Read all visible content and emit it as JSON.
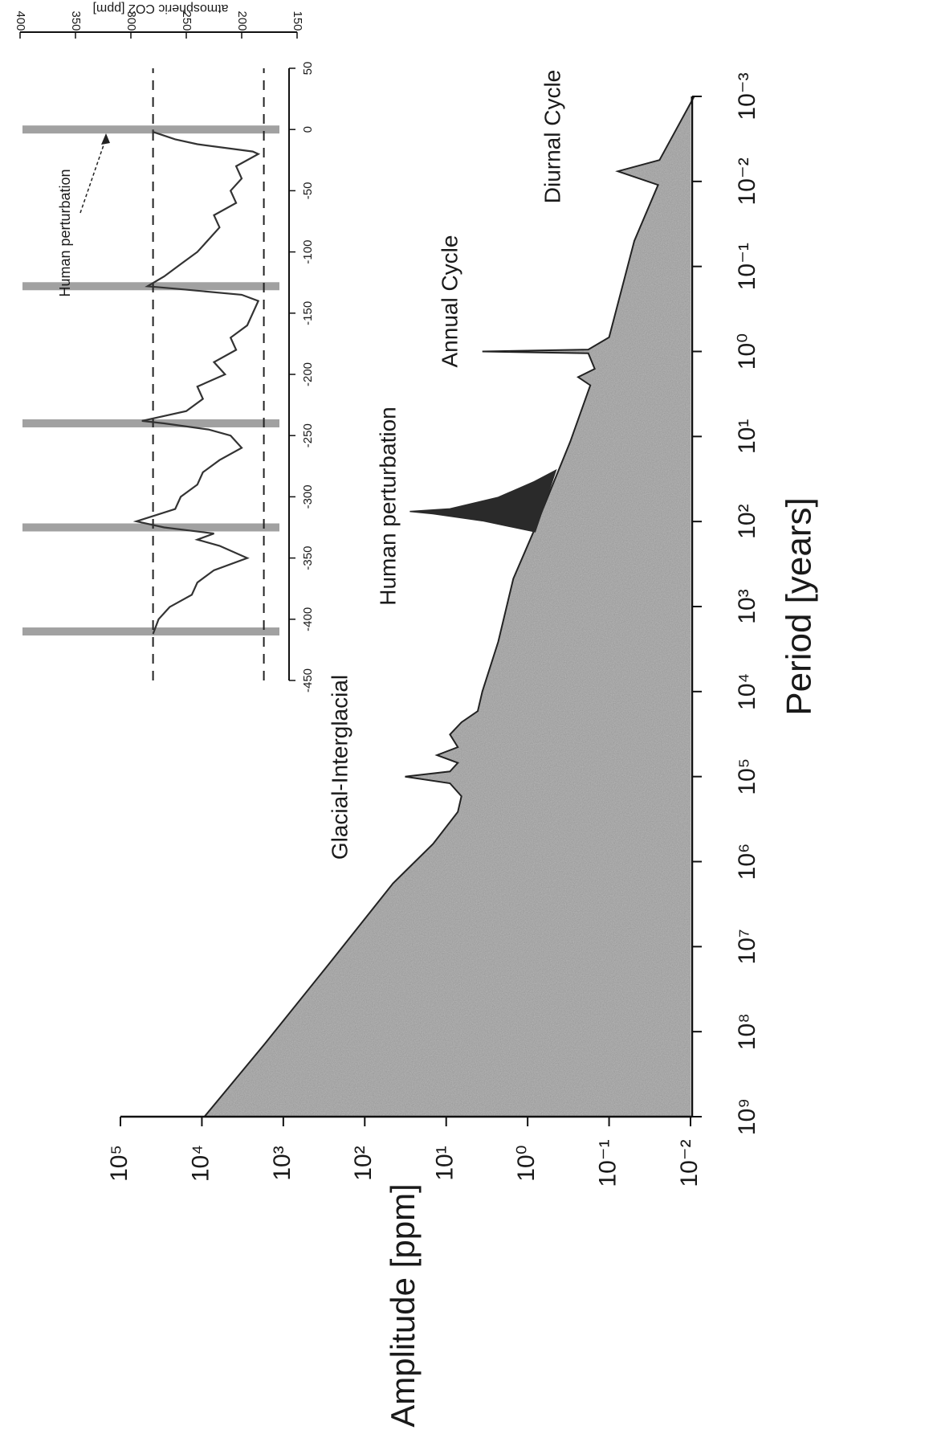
{
  "chart_data": [
    {
      "type": "area",
      "x_label": "Period [years]",
      "y_label": "Amplitude [ppm]",
      "xscale": "log",
      "yscale": "log",
      "xlim": [
        1000000000,
        0.001
      ],
      "ylim": [
        0.01,
        100000
      ],
      "xticks": [
        {
          "value": 1000000000,
          "label": "10⁹"
        },
        {
          "value": 100000000,
          "label": "10⁸"
        },
        {
          "value": 10000000,
          "label": "10⁷"
        },
        {
          "value": 1000000,
          "label": "10⁶"
        },
        {
          "value": 100000,
          "label": "10⁵"
        },
        {
          "value": 10000,
          "label": "10⁴"
        },
        {
          "value": 1000,
          "label": "10³"
        },
        {
          "value": 100,
          "label": "10²"
        },
        {
          "value": 10,
          "label": "10¹"
        },
        {
          "value": 1,
          "label": "10⁰"
        },
        {
          "value": 0.1,
          "label": "10⁻¹"
        },
        {
          "value": 0.01,
          "label": "10⁻²"
        },
        {
          "value": 0.001,
          "label": "10⁻³"
        }
      ],
      "yticks": [
        {
          "value": 100000,
          "label": "10⁵"
        },
        {
          "value": 10000,
          "label": "10⁴"
        },
        {
          "value": 1000,
          "label": "10³"
        },
        {
          "value": 100,
          "label": "10²"
        },
        {
          "value": 10,
          "label": "10¹"
        },
        {
          "value": 1,
          "label": "10⁰"
        },
        {
          "value": 0.1,
          "label": "10⁻¹"
        },
        {
          "value": 0.01,
          "label": "10⁻²"
        }
      ],
      "series": [
        {
          "color": "#b4b4b4",
          "x": [
            1000000000,
            140000000,
            16000000,
            1800000,
            620000,
            260000,
            170000,
            120000,
            100000,
            87000,
            69000,
            56000,
            45000,
            32000,
            23000,
            17000,
            10000,
            2600,
            470,
            126,
            11.5,
            2.5,
            2.0,
            1.6,
            1.05,
            1.0,
            0.95,
            0.68,
            0.05,
            0.011,
            0.0076,
            0.0056,
            0.001
          ],
          "values": [
            9300,
            1700,
            275,
            45,
            14.5,
            7.2,
            6.5,
            9,
            32,
            9,
            7.2,
            13,
            7.2,
            9,
            6.5,
            4.1,
            3.6,
            2.3,
            1.5,
            0.83,
            0.3,
            0.17,
            0.24,
            0.15,
            0.18,
            3.6,
            0.18,
            0.1,
            0.049,
            0.025,
            0.078,
            0.024,
            0.009
          ]
        },
        {
          "color": "#2a2a2a",
          "x": [
            132,
            98,
            81,
            76,
            71,
            52,
            34,
            25
          ],
          "values": [
            0.81,
            3.6,
            14.5,
            28,
            9,
            2.3,
            0.83,
            0.45
          ]
        }
      ],
      "annotations": [
        "Glacial-Interglacial",
        "Human perturbation",
        "Annual Cycle",
        "Diurnal Cycle"
      ]
    },
    {
      "type": "line",
      "y_label": "atmospheric CO2 [ppm]",
      "xlim": [
        -450,
        50
      ],
      "ylim": [
        150,
        400
      ],
      "xticks": [
        -450,
        -400,
        -350,
        -300,
        -250,
        -200,
        -150,
        -100,
        -50,
        0,
        50
      ],
      "yticks": [
        150,
        200,
        250,
        300,
        350,
        400
      ],
      "color": "#333333",
      "x": [
        -412,
        -400,
        -390,
        -380,
        -370,
        -360,
        -350,
        -340,
        -335,
        -330,
        -325,
        -320,
        -310,
        -300,
        -290,
        -280,
        -270,
        -260,
        -250,
        -245,
        -240,
        -238,
        -230,
        -220,
        -210,
        -200,
        -190,
        -180,
        -170,
        -160,
        -150,
        -140,
        -135,
        -130,
        -128,
        -120,
        -110,
        -100,
        -90,
        -80,
        -70,
        -60,
        -50,
        -40,
        -30,
        -20,
        -18,
        -12,
        -8,
        -2,
        0
      ],
      "values": [
        280,
        275,
        265,
        245,
        240,
        225,
        195,
        220,
        240,
        225,
        270,
        295,
        260,
        255,
        240,
        235,
        220,
        200,
        210,
        230,
        270,
        290,
        250,
        235,
        240,
        215,
        225,
        205,
        210,
        195,
        190,
        185,
        200,
        260,
        285,
        270,
        255,
        240,
        230,
        220,
        225,
        205,
        210,
        200,
        205,
        185,
        190,
        240,
        260,
        280,
        280
      ],
      "hlines": [
        280,
        180
      ],
      "bands": [
        -410,
        -325,
        -240,
        -128,
        0
      ],
      "annotations": [
        "Human perturbation"
      ]
    }
  ]
}
